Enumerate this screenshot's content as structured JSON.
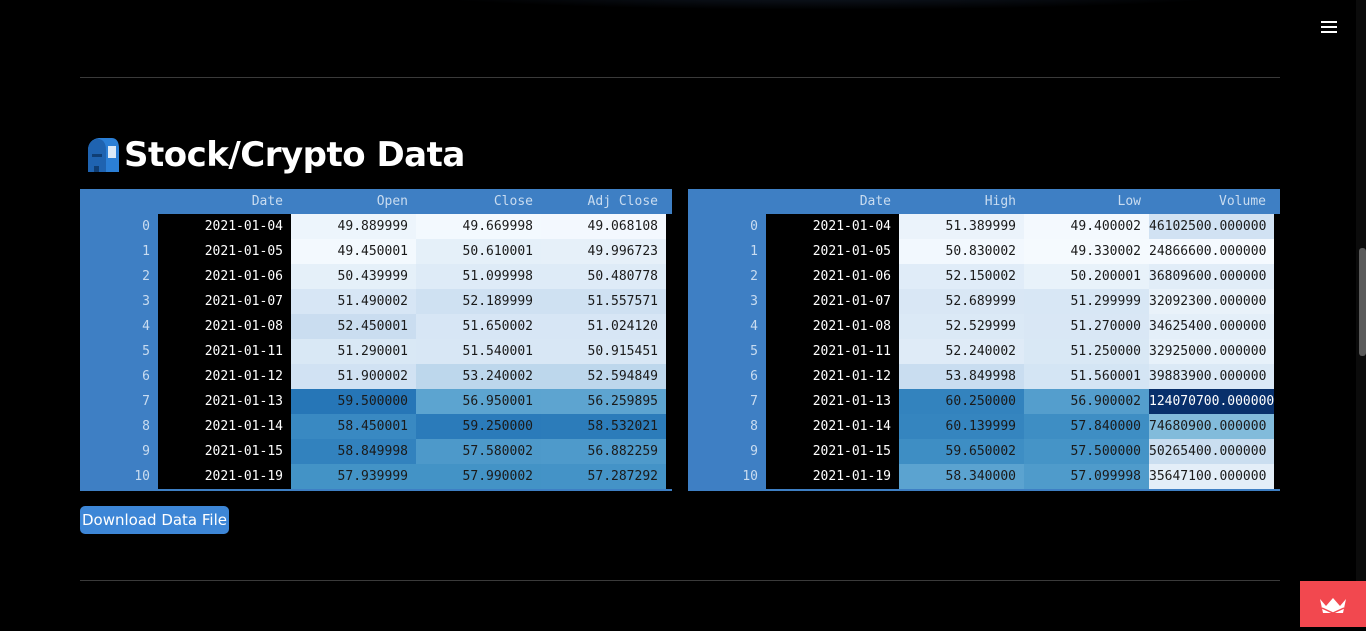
{
  "menu_icon": "hamburger-menu-icon",
  "section": {
    "title": "Stock/Crypto Data",
    "icon": "mailbox-icon"
  },
  "left_table": {
    "columns": [
      "Date",
      "Open",
      "Close",
      "Adj Close"
    ],
    "index": [
      "0",
      "1",
      "2",
      "3",
      "4",
      "5",
      "6",
      "7",
      "8",
      "9",
      "10"
    ],
    "rows": [
      [
        "2021-01-04",
        "49.889999",
        "49.669998",
        "49.068108"
      ],
      [
        "2021-01-05",
        "49.450001",
        "50.610001",
        "49.996723"
      ],
      [
        "2021-01-06",
        "50.439999",
        "51.099998",
        "50.480778"
      ],
      [
        "2021-01-07",
        "51.490002",
        "52.189999",
        "51.557571"
      ],
      [
        "2021-01-08",
        "52.450001",
        "51.650002",
        "51.024120"
      ],
      [
        "2021-01-11",
        "51.290001",
        "51.540001",
        "50.915451"
      ],
      [
        "2021-01-12",
        "51.900002",
        "53.240002",
        "52.594849"
      ],
      [
        "2021-01-13",
        "59.500000",
        "56.950001",
        "56.259895"
      ],
      [
        "2021-01-14",
        "58.450001",
        "59.250000",
        "58.532021"
      ],
      [
        "2021-01-15",
        "58.849998",
        "57.580002",
        "56.882259"
      ],
      [
        "2021-01-19",
        "57.939999",
        "57.990002",
        "57.287292"
      ]
    ]
  },
  "right_table": {
    "columns": [
      "Date",
      "High",
      "Low",
      "Volume"
    ],
    "index": [
      "0",
      "1",
      "2",
      "3",
      "4",
      "5",
      "6",
      "7",
      "8",
      "9",
      "10"
    ],
    "rows": [
      [
        "2021-01-04",
        "51.389999",
        "49.400002",
        "46102500.000000"
      ],
      [
        "2021-01-05",
        "50.830002",
        "49.330002",
        "24866600.000000"
      ],
      [
        "2021-01-06",
        "52.150002",
        "50.200001",
        "36809600.000000"
      ],
      [
        "2021-01-07",
        "52.689999",
        "51.299999",
        "32092300.000000"
      ],
      [
        "2021-01-08",
        "52.529999",
        "51.270000",
        "34625400.000000"
      ],
      [
        "2021-01-11",
        "52.240002",
        "51.250000",
        "32925000.000000"
      ],
      [
        "2021-01-12",
        "53.849998",
        "51.560001",
        "39883900.000000"
      ],
      [
        "2021-01-13",
        "60.250000",
        "56.900002",
        "124070700.000000"
      ],
      [
        "2021-01-14",
        "60.139999",
        "57.840000",
        "74680900.000000"
      ],
      [
        "2021-01-15",
        "59.650002",
        "57.500000",
        "50265400.000000"
      ],
      [
        "2021-01-19",
        "58.340000",
        "57.099998",
        "35647100.000000"
      ]
    ]
  },
  "download_button": {
    "label": "Download Data File"
  },
  "badge_icon": "crown-icon",
  "colors": {
    "page_background": "#000000",
    "table_header": "#3e7fc4",
    "button": "#3d86d6",
    "badge": "#f2484f"
  }
}
